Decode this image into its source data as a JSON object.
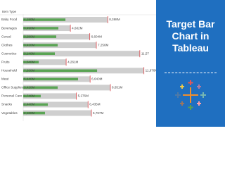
{
  "chart_data": {
    "type": "bullet",
    "y_label": "Item Type",
    "categories": [
      "Baby Food",
      "Beverages",
      "Cereal",
      "Clothes",
      "Cosmetics",
      "Fruits",
      "Household",
      "Meat",
      "Office Supplies",
      "Personal Care",
      "Snacks",
      "Vegetables"
    ],
    "values": [
      4.19,
      3.49,
      3.28,
      3.42,
      3.14,
      1.54,
      7.33,
      5.44,
      3.42,
      1.74,
      2.44,
      2.16
    ],
    "value_labels": [
      "4,190M",
      "3,490M",
      "3,280M",
      "3,420M",
      "3,140M",
      "1,540M",
      "7,330M",
      "5,440M",
      "3,420M",
      "1,740M",
      "2,440M",
      "2,160M"
    ],
    "targets": [
      8.388,
      4.682,
      6.604,
      7.256,
      11.57,
      4.261,
      11.978,
      6.64,
      8.651,
      5.276,
      6.435,
      6.767
    ],
    "target_labels": [
      "8,388M",
      "4,682M",
      "6,604M",
      "7,256M",
      "11,57",
      "4,261M",
      "11,978M",
      "6,640M",
      "8,651M",
      "5,276M",
      "6,435M",
      "6,767M"
    ],
    "color": "#5aa454",
    "target_color": "#cfcfcf",
    "target_line_color": "#e0464b",
    "xlim": [
      0,
      12
    ]
  },
  "banner": {
    "title": "Target Bar Chart in Tableau"
  }
}
